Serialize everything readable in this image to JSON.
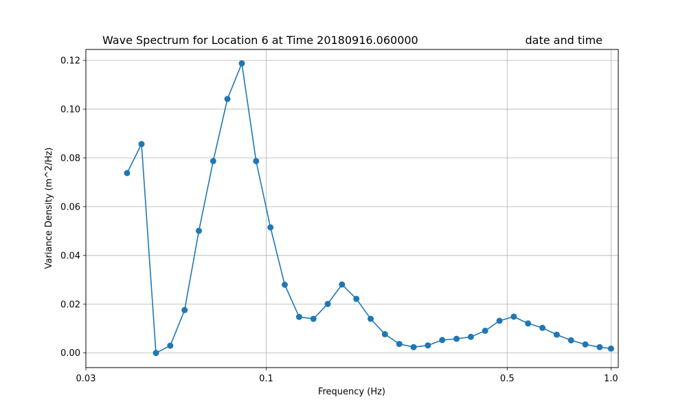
{
  "chart_data": {
    "type": "line",
    "title": "Wave Spectrum for Location 6 at Time 20180916.060000",
    "title_right": "date and time",
    "xlabel": "Frequency (Hz)",
    "ylabel": "Variance Density (m^2/Hz)",
    "x_scale": "log",
    "xlim": [
      0.03,
      1.05
    ],
    "ylim": [
      -0.006,
      0.1245
    ],
    "x_ticks": [
      {
        "value": 0.03,
        "label": "0.03"
      },
      {
        "value": 0.1,
        "label": "0.1"
      },
      {
        "value": 0.5,
        "label": "0.5"
      },
      {
        "value": 1.0,
        "label": "1.0"
      }
    ],
    "y_ticks": [
      {
        "value": 0.0,
        "label": "0.00"
      },
      {
        "value": 0.02,
        "label": "0.02"
      },
      {
        "value": 0.04,
        "label": "0.04"
      },
      {
        "value": 0.06,
        "label": "0.06"
      },
      {
        "value": 0.08,
        "label": "0.08"
      },
      {
        "value": 0.1,
        "label": "0.10"
      },
      {
        "value": 0.12,
        "label": "0.12"
      }
    ],
    "grid": true,
    "marker": "circle",
    "color": "#1f77b4",
    "series": [
      {
        "x": [
          0.0395,
          0.0435,
          0.0479,
          0.0527,
          0.058,
          0.0638,
          0.0702,
          0.0772,
          0.085,
          0.0935,
          0.1029,
          0.1132,
          0.1246,
          0.1371,
          0.1508,
          0.1659,
          0.1826,
          0.2009,
          0.221,
          0.2432,
          0.2676,
          0.2944,
          0.324,
          0.3565,
          0.3922,
          0.4316,
          0.4749,
          0.5225,
          0.5749,
          0.6326,
          0.6961,
          0.7659,
          0.8427,
          0.9273,
          1.0
        ],
        "y": [
          0.0738,
          0.0857,
          0.0,
          0.003,
          0.0176,
          0.0501,
          0.0787,
          0.1042,
          0.1188,
          0.0787,
          0.0515,
          0.028,
          0.0148,
          0.014,
          0.0201,
          0.0281,
          0.0222,
          0.014,
          0.0077,
          0.0037,
          0.0024,
          0.0031,
          0.0053,
          0.0058,
          0.0066,
          0.0091,
          0.0132,
          0.0149,
          0.0121,
          0.0103,
          0.0075,
          0.0052,
          0.0035,
          0.0024,
          0.0018
        ]
      }
    ]
  }
}
